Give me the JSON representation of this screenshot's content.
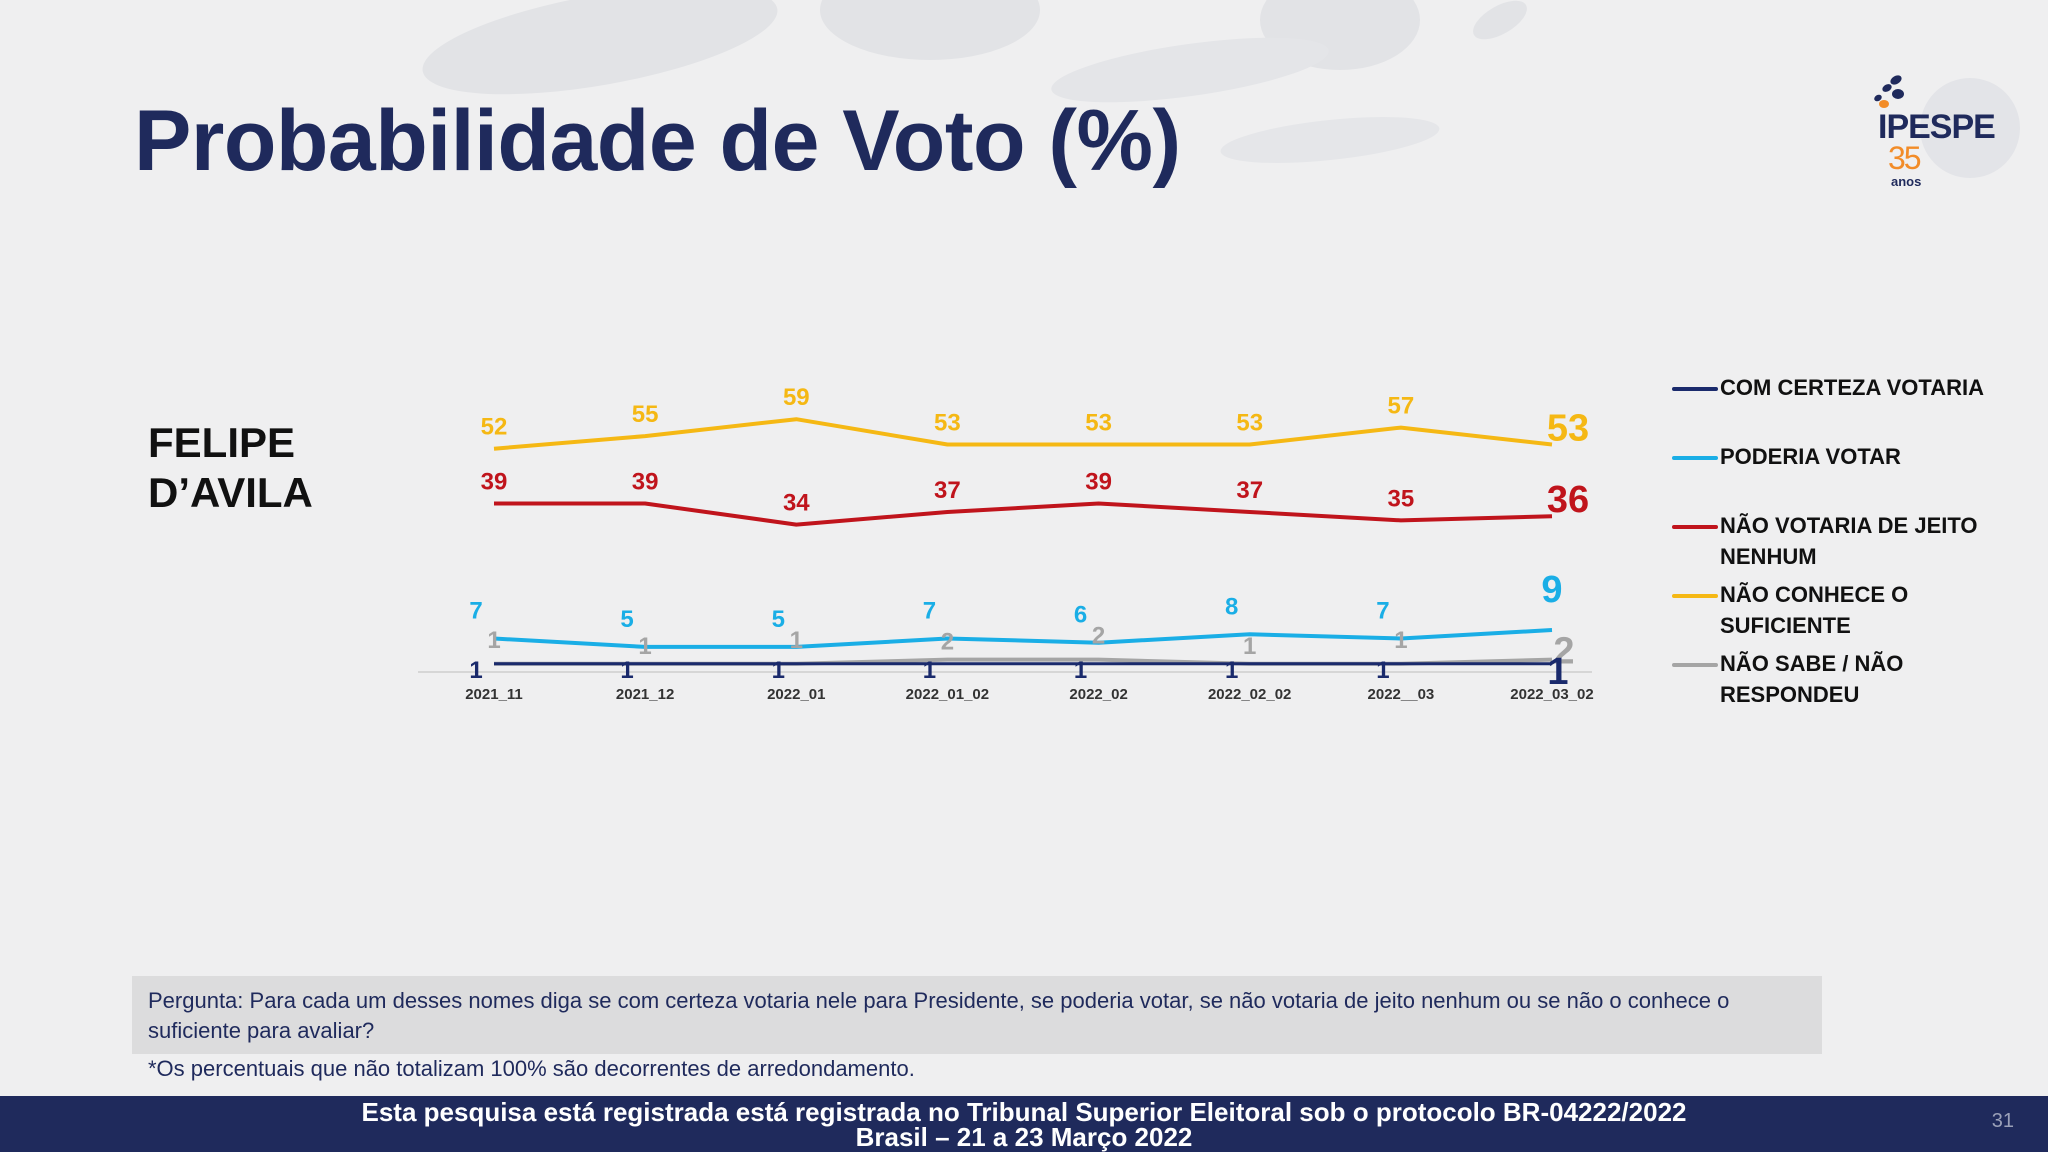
{
  "title": "Probabilidade de Voto (%)",
  "logo": {
    "name": "IPESPE",
    "years": "35",
    "anos": "anos"
  },
  "candidate": {
    "line1": "FELIPE",
    "line2": "D’AVILA"
  },
  "colors": {
    "com_certeza": "#1a2a6c",
    "poderia": "#1aaee6",
    "nao_votaria": "#c0141c",
    "nao_conhece": "#f5b814",
    "nao_sabe": "#a5a5a5"
  },
  "chart_data": {
    "type": "line",
    "title": "Probabilidade de Voto (%)",
    "categories": [
      "2021_11",
      "2021_12",
      "2022_01",
      "2022_01_02",
      "2022_02",
      "2022_02_02",
      "2022__03",
      "2022_03_02"
    ],
    "ylim": [
      0,
      60
    ],
    "grid": false,
    "legend_position": "right",
    "series": [
      {
        "key": "com_certeza",
        "name": "COM CERTEZA VOTARIA",
        "values": [
          1,
          1,
          1,
          1,
          1,
          1,
          1,
          1
        ]
      },
      {
        "key": "poderia",
        "name": "PODERIA VOTAR",
        "values": [
          7,
          5,
          5,
          7,
          6,
          8,
          7,
          9
        ]
      },
      {
        "key": "nao_votaria",
        "name": "NÃO VOTARIA DE JEITO NENHUM",
        "values": [
          39,
          39,
          34,
          37,
          39,
          37,
          35,
          36
        ]
      },
      {
        "key": "nao_conhece",
        "name": "NÃO CONHECE O SUFICIENTE",
        "values": [
          52,
          55,
          59,
          53,
          53,
          53,
          57,
          53
        ]
      },
      {
        "key": "nao_sabe",
        "name": "NÃO SABE / NÃO RESPONDEU",
        "values": [
          1,
          1,
          1,
          2,
          2,
          1,
          1,
          2
        ]
      }
    ]
  },
  "question": "Pergunta:  Para cada um desses nomes diga se com certeza votaria nele para Presidente, se poderia votar, se não votaria de jeito nenhum ou se não o conhece o suficiente para avaliar?",
  "footnote": "*Os percentuais que não totalizam 100% são decorrentes de arredondamento.",
  "footer": {
    "line1": "Esta pesquisa está registrada está registrada no Tribunal Superior Eleitoral sob o protocolo BR-04222/2022",
    "line2": "Brasil – 21 a 23 Março 2022"
  },
  "page_number": "31"
}
